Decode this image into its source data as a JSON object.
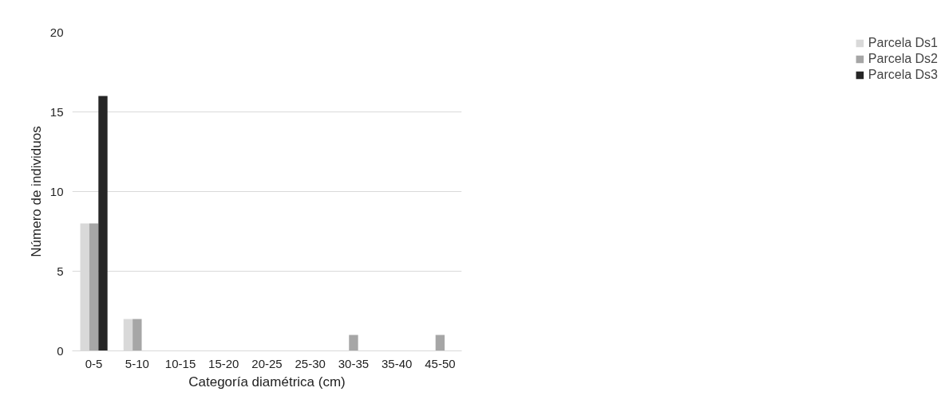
{
  "chart_data": {
    "type": "bar",
    "xlabel": "Categoría diamétrica (cm)",
    "ylabel": "Número de individuos",
    "categories": [
      "0-5",
      "5-10",
      "10-15",
      "15-20",
      "20-25",
      "25-30",
      "30-35",
      "35-40",
      "45-50"
    ],
    "series": [
      {
        "name": "Parcela Ds1",
        "color": "#d9d9d9",
        "values": [
          8,
          2,
          0,
          0,
          0,
          0,
          0,
          0,
          0
        ]
      },
      {
        "name": "Parcela Ds2",
        "color": "#a6a6a6",
        "values": [
          8,
          2,
          0,
          0,
          0,
          0,
          1,
          0,
          1
        ]
      },
      {
        "name": "Parcela Ds3",
        "color": "#262626",
        "values": [
          16,
          0,
          0,
          0,
          0,
          0,
          0,
          0,
          0
        ]
      }
    ],
    "ylim": [
      0,
      20
    ],
    "yticks": [
      0,
      5,
      10,
      15,
      20
    ],
    "grid": "y",
    "legend": "right"
  }
}
